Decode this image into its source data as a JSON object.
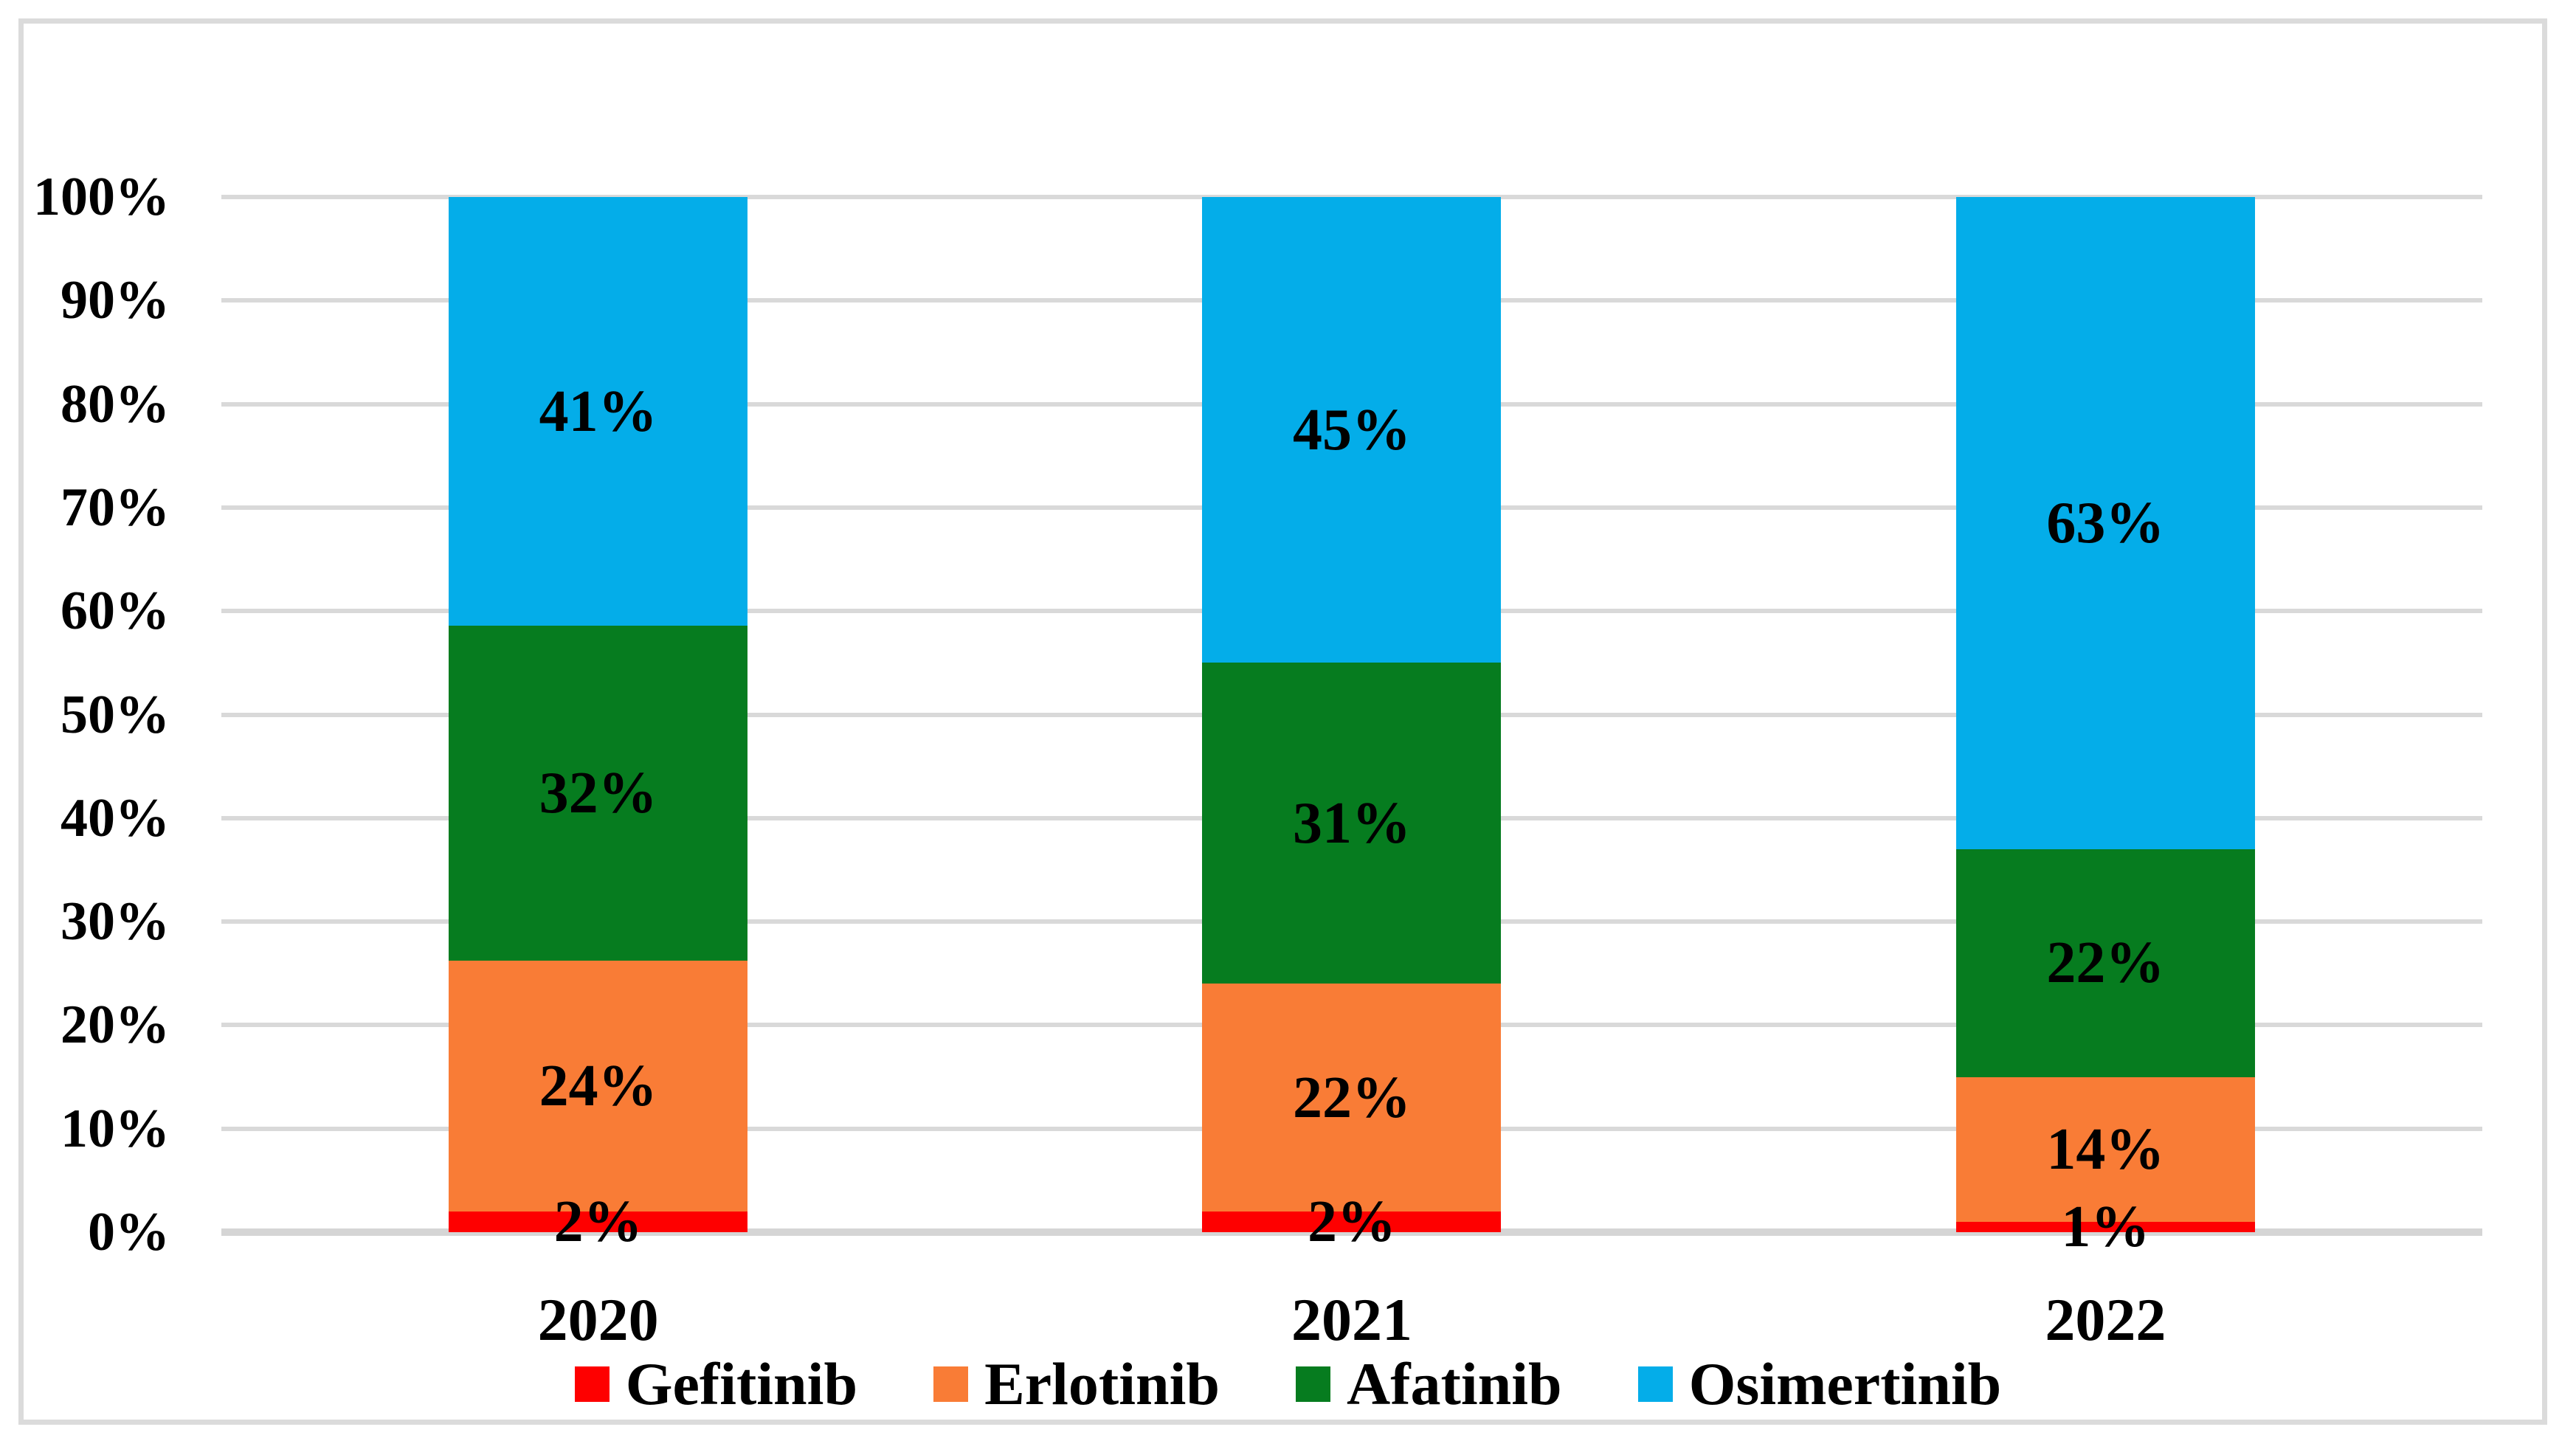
{
  "chart_data": {
    "type": "bar",
    "variant": "stacked-100-percent",
    "title": "",
    "categories": [
      "2020",
      "2021",
      "2022"
    ],
    "series": [
      {
        "name": "Gefitinib",
        "color": "#FE0000",
        "values": [
          2,
          2,
          1
        ],
        "labels": [
          "2%",
          "2%",
          "1%"
        ]
      },
      {
        "name": "Erlotinib",
        "color": "#F97C36",
        "values": [
          24,
          22,
          14
        ],
        "labels": [
          "24%",
          "22%",
          "14%"
        ]
      },
      {
        "name": "Afatinib",
        "color": "#067C1F",
        "values": [
          32,
          31,
          22
        ],
        "labels": [
          "32%",
          "31%",
          "22%"
        ]
      },
      {
        "name": "Osimertinib",
        "color": "#04ADE9",
        "values": [
          41,
          45,
          63
        ],
        "labels": [
          "41%",
          "45%",
          "63%"
        ]
      }
    ],
    "y_axis": {
      "min": 0,
      "max": 100,
      "step": 10,
      "tick_labels": [
        "0%",
        "10%",
        "20%",
        "30%",
        "40%",
        "50%",
        "60%",
        "70%",
        "80%",
        "90%",
        "100%"
      ]
    },
    "grid": true,
    "legend_position": "bottom",
    "legend_labels": [
      "Gefitinib",
      "Erlotinib",
      "Afatinib",
      "Osimertinib"
    ]
  },
  "style_colors": {
    "gridline": "#D9D9D9",
    "axis_line": "#D5D5D5",
    "frame_border": "#DBDBDB",
    "text": "#000000",
    "background": "#FFFFFF"
  }
}
